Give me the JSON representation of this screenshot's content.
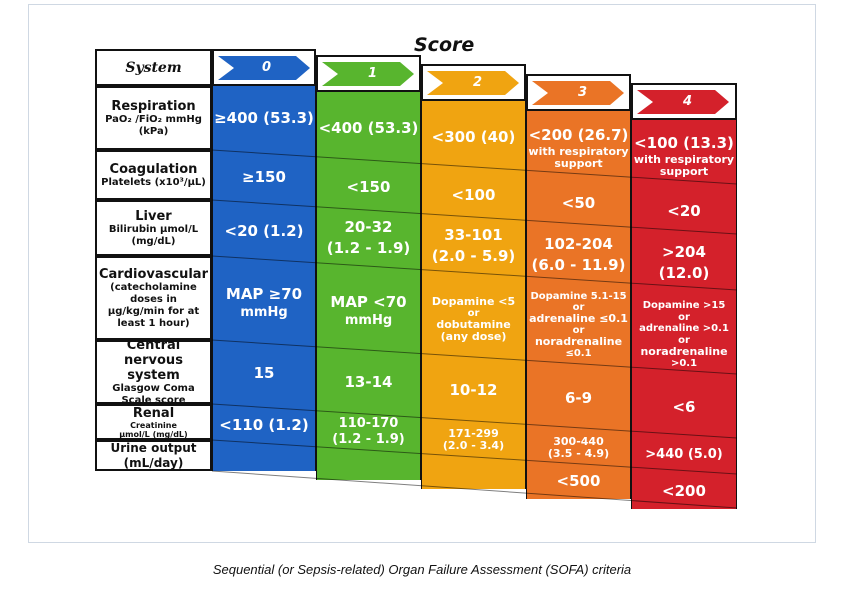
{
  "score_title": "Score",
  "caption": "Sequential (or Sepsis-related) Organ Failure Assessment (SOFA) criteria",
  "system_header": "System",
  "score_labels": [
    "0",
    "1",
    "2",
    "3",
    "4"
  ],
  "colors": {
    "score0": "#1f63c4",
    "score1": "#58b52e",
    "score2": "#f0a411",
    "score3": "#ea7426",
    "score4": "#d4212b"
  },
  "rows": {
    "respiration": {
      "title": "Respiration",
      "sub1": "PaO₂ /FiO₂ mmHg",
      "sub2": "(kPa)",
      "s0": "≥400 (53.3)",
      "s1": "<400 (53.3)",
      "s2": "<300 (40)",
      "s3": "<200 (26.7)",
      "s3_note1": "with respiratory",
      "s3_note2": "support",
      "s4": "<100 (13.3)",
      "s4_note1": "with respiratory",
      "s4_note2": "support"
    },
    "coagulation": {
      "title": "Coagulation",
      "sub1": "Platelets (x10³/μL)",
      "s0": "≥150",
      "s1": "<150",
      "s2": "<100",
      "s3": "<50",
      "s4": "<20"
    },
    "liver": {
      "title": "Liver",
      "sub1": "Bilirubin μmol/L",
      "sub2": "(mg/dL)",
      "s0": "<20 (1.2)",
      "s1a": "20-32",
      "s1b": "(1.2 - 1.9)",
      "s2a": "33-101",
      "s2b": "(2.0 - 5.9)",
      "s3a": "102-204",
      "s3b": "(6.0 - 11.9)",
      "s4a": ">204",
      "s4b": "(12.0)"
    },
    "cardio": {
      "title": "Cardiovascular",
      "sub1": "(catecholamine",
      "sub2": "doses in",
      "sub3": "μg/kg/min for at",
      "sub4": "least 1 hour)",
      "s0a": "MAP ≥70",
      "s0b": "mmHg",
      "s1a": "MAP <70",
      "s1b": "mmHg",
      "s2a": "Dopamine <5",
      "s2b": "or",
      "s2c": "dobutamine",
      "s2d": "(any dose)",
      "s3a": "Dopamine 5.1-15",
      "s3b": "or",
      "s3c": "adrenaline ≤0.1",
      "s3d": "or",
      "s3e": "noradrenaline",
      "s3f": "≤0.1",
      "s4a": "Dopamine >15",
      "s4b": "or",
      "s4c": "adrenaline >0.1",
      "s4d": "or",
      "s4e": "noradrenaline",
      "s4f": ">0.1"
    },
    "cns": {
      "title1": "Central",
      "title2": "nervous system",
      "sub1": "Glasgow Coma",
      "sub2": "Scale score",
      "s0": "15",
      "s1": "13-14",
      "s2": "10-12",
      "s3": "6-9",
      "s4": "<6"
    },
    "renal": {
      "title": "Renal",
      "sub1": "Creatinine",
      "sub2": "μmol/L (mg/dL)",
      "s0": "<110 (1.2)",
      "s1a": "110-170",
      "s1b": "(1.2 - 1.9)",
      "s2a": "171-299",
      "s2b": "(2.0 - 3.4)",
      "s3a": "300-440",
      "s3b": "(3.5 - 4.9)",
      "s4": ">440 (5.0)"
    },
    "urine": {
      "title1": "Urine output",
      "title2": "(mL/day)",
      "s3": "<500",
      "s4": "<200"
    }
  }
}
